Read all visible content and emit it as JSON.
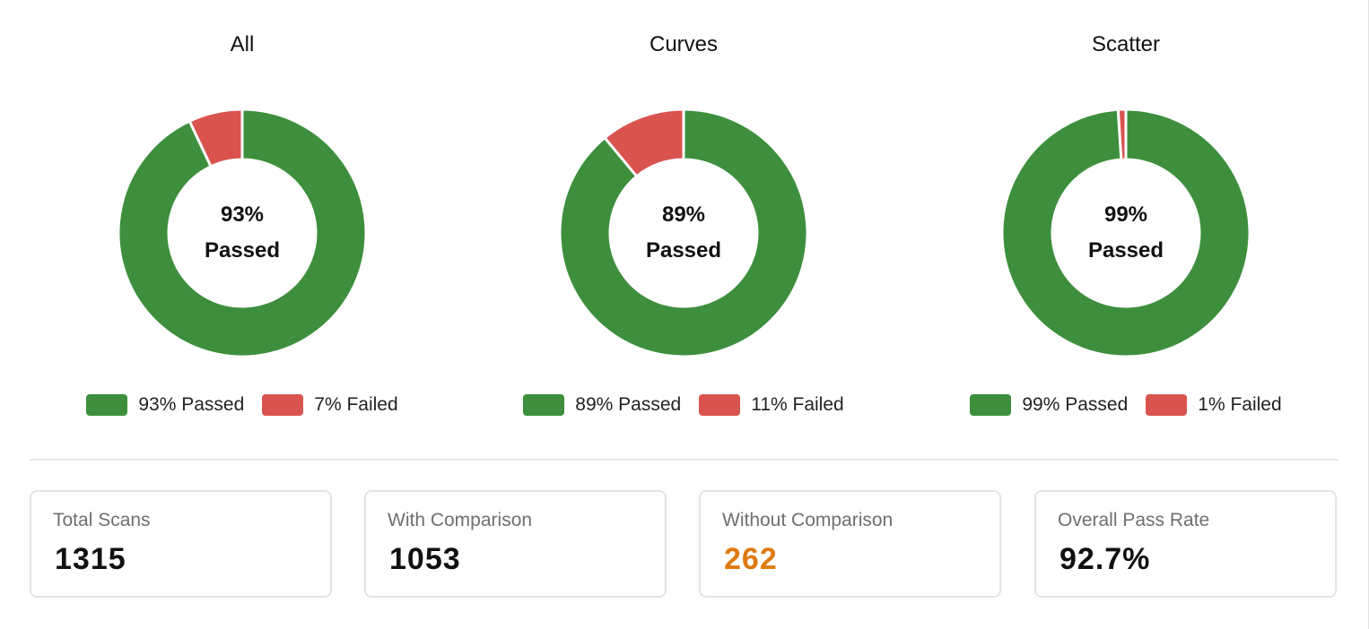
{
  "colors": {
    "passed": "#3d8f3d",
    "failed": "#d9534f",
    "warning": "#e07a10"
  },
  "chart_data": [
    {
      "type": "pie",
      "title": "All",
      "categories": [
        "Passed",
        "Failed"
      ],
      "values": [
        93,
        7
      ],
      "center_value": "93%",
      "center_label": "Passed",
      "legend": [
        "93% Passed",
        "7% Failed"
      ],
      "legend_position": "bottom"
    },
    {
      "type": "pie",
      "title": "Curves",
      "categories": [
        "Passed",
        "Failed"
      ],
      "values": [
        89,
        11
      ],
      "center_value": "89%",
      "center_label": "Passed",
      "legend": [
        "89% Passed",
        "11% Failed"
      ],
      "legend_position": "bottom"
    },
    {
      "type": "pie",
      "title": "Scatter",
      "categories": [
        "Passed",
        "Failed"
      ],
      "values": [
        99,
        1
      ],
      "center_value": "99%",
      "center_label": "Passed",
      "legend": [
        "99% Passed",
        "1% Failed"
      ],
      "legend_position": "bottom"
    }
  ],
  "stats": [
    {
      "label": "Total Scans",
      "value": "1315"
    },
    {
      "label": "With Comparison",
      "value": "1053"
    },
    {
      "label": "Without Comparison",
      "value": "262"
    },
    {
      "label": "Overall Pass Rate",
      "value": "92.7%"
    }
  ]
}
